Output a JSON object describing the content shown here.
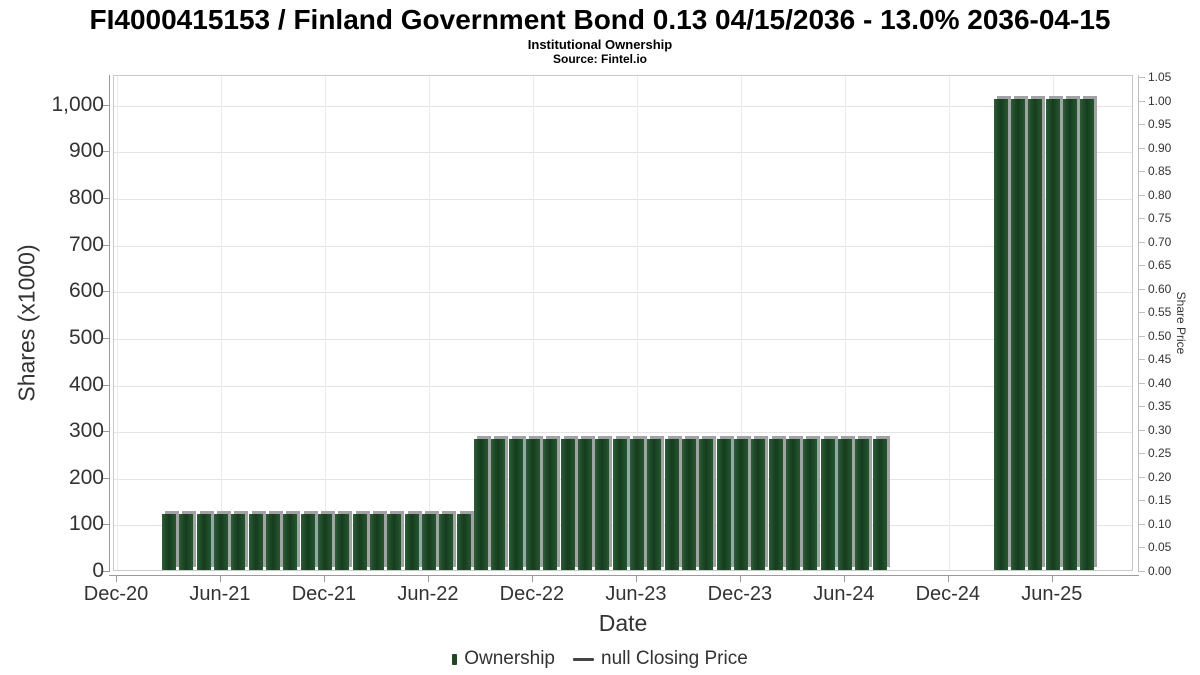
{
  "chart_data": {
    "type": "bar",
    "title": "FI4000415153 / Finland Government Bond 0.13 04/15/2036 - 13.0% 2036-04-15",
    "subtitle": "Institutional Ownership",
    "source": "Source: Fintel.io",
    "xlabel": "Date",
    "ylabel_left": "Shares (x1000)",
    "ylabel_right": "Share Price",
    "x_tick_labels": [
      "Dec-20",
      "Jun-21",
      "Dec-21",
      "Jun-22",
      "Dec-22",
      "Jun-23",
      "Dec-23",
      "Jun-24",
      "Dec-24",
      "Jun-25"
    ],
    "x_axis_start": "Dec-20",
    "x_axis_months_span": 59,
    "y_left": {
      "min": 0,
      "max": 1064,
      "tick_step": 100,
      "tick_max": 1000
    },
    "y_right": {
      "min": 0,
      "max": 1.055,
      "tick_step": 0.05,
      "tick_max": 1.05
    },
    "grid": {
      "horizontal": true,
      "vertical": true
    },
    "legend_position": "bottom-center",
    "series": [
      {
        "name": "Ownership",
        "type": "column",
        "color": "#1c4a25",
        "points": [
          [
            "Mar-21",
            120
          ],
          [
            "Apr-21",
            120
          ],
          [
            "May-21",
            120
          ],
          [
            "Jun-21",
            120
          ],
          [
            "Jul-21",
            120
          ],
          [
            "Aug-21",
            120
          ],
          [
            "Sep-21",
            120
          ],
          [
            "Oct-21",
            120
          ],
          [
            "Nov-21",
            120
          ],
          [
            "Dec-21",
            120
          ],
          [
            "Jan-22",
            120
          ],
          [
            "Feb-22",
            120
          ],
          [
            "Mar-22",
            120
          ],
          [
            "Apr-22",
            120
          ],
          [
            "May-22",
            120
          ],
          [
            "Jun-22",
            120
          ],
          [
            "Jul-22",
            120
          ],
          [
            "Aug-22",
            120
          ],
          [
            "Sep-22",
            280
          ],
          [
            "Oct-22",
            280
          ],
          [
            "Nov-22",
            280
          ],
          [
            "Dec-22",
            280
          ],
          [
            "Jan-23",
            280
          ],
          [
            "Feb-23",
            280
          ],
          [
            "Mar-23",
            280
          ],
          [
            "Apr-23",
            280
          ],
          [
            "May-23",
            280
          ],
          [
            "Jun-23",
            280
          ],
          [
            "Jul-23",
            280
          ],
          [
            "Aug-23",
            280
          ],
          [
            "Sep-23",
            280
          ],
          [
            "Oct-23",
            280
          ],
          [
            "Nov-23",
            280
          ],
          [
            "Dec-23",
            280
          ],
          [
            "Jan-24",
            280
          ],
          [
            "Feb-24",
            280
          ],
          [
            "Mar-24",
            280
          ],
          [
            "Apr-24",
            280
          ],
          [
            "May-24",
            280
          ],
          [
            "Jun-24",
            280
          ],
          [
            "Jul-24",
            280
          ],
          [
            "Aug-24",
            280
          ],
          [
            "Mar-25",
            1010
          ],
          [
            "Apr-25",
            1010
          ],
          [
            "May-25",
            1010
          ],
          [
            "Jun-25",
            1010
          ],
          [
            "Jul-25",
            1010
          ],
          [
            "Aug-25",
            1010
          ]
        ]
      },
      {
        "name": "null Closing Price",
        "type": "line",
        "color": "#444444",
        "axis": "right",
        "points": []
      }
    ]
  }
}
